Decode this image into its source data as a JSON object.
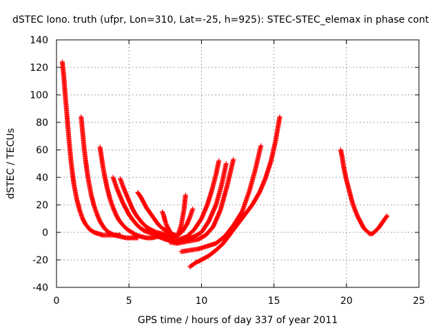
{
  "chart_data": {
    "type": "scatter",
    "title": "dSTEC Iono. truth (ufpr, Lon=310, Lat=-25, h=925): STEC-STEC_elemax in phase cont",
    "xlabel": "GPS time / hours of day 337 of year 2011",
    "ylabel": "dSTEC  / TECUs",
    "xlim": [
      0,
      25
    ],
    "ylim": [
      -40,
      140
    ],
    "xticks": [
      0,
      5,
      10,
      15,
      20,
      25
    ],
    "yticks": [
      -40,
      -20,
      0,
      20,
      40,
      60,
      80,
      100,
      120,
      140
    ],
    "grid": true,
    "marker": "+",
    "color": "#ff0000",
    "series": [
      {
        "x": [
          0.4,
          0.5,
          0.6,
          0.7,
          0.8,
          0.9,
          1.0,
          1.1,
          1.2,
          1.4,
          1.6,
          1.8,
          2.0,
          2.3,
          2.6,
          2.9,
          3.2,
          3.5,
          3.8,
          4.1,
          4.4
        ],
        "y": [
          124,
          114,
          100,
          88,
          75,
          63,
          52,
          43,
          35,
          24,
          16,
          10,
          6,
          2,
          0,
          -1,
          -2,
          -2,
          -2,
          -2,
          -2
        ]
      },
      {
        "x": [
          1.7,
          1.8,
          1.9,
          2.0,
          2.1,
          2.2,
          2.4,
          2.6,
          2.8,
          3.0,
          3.3,
          3.6,
          4.0,
          4.4,
          4.8,
          5.2,
          5.6
        ],
        "y": [
          84,
          73,
          62,
          53,
          45,
          38,
          27,
          19,
          13,
          8,
          3,
          0,
          -2,
          -3,
          -4,
          -4,
          -4
        ]
      },
      {
        "x": [
          3.0,
          3.1,
          3.2,
          3.3,
          3.4,
          3.5,
          3.7,
          3.9,
          4.1,
          4.3,
          4.6,
          4.9,
          5.2,
          5.5,
          5.8,
          6.2,
          6.6,
          7.0
        ],
        "y": [
          62,
          55,
          48,
          42,
          37,
          32,
          24,
          18,
          13,
          9,
          5,
          2,
          0,
          -2,
          -3,
          -4,
          -4,
          -3
        ]
      },
      {
        "x": [
          3.9,
          4.0,
          4.2,
          4.4,
          4.6,
          4.8,
          5.0,
          5.2,
          5.5,
          5.8,
          6.1,
          6.4,
          6.8,
          7.2,
          7.6
        ],
        "y": [
          40,
          37,
          31,
          26,
          21,
          17,
          13,
          10,
          6,
          3,
          1,
          0,
          -2,
          -3,
          -3
        ]
      },
      {
        "x": [
          4.4,
          4.6,
          4.8,
          5.0,
          5.2,
          5.4,
          5.6,
          5.9,
          6.2,
          6.5,
          6.9,
          7.3,
          7.7,
          8.0
        ],
        "y": [
          39,
          33,
          28,
          23,
          18,
          14,
          11,
          7,
          4,
          2,
          0,
          -1,
          -2,
          -2
        ]
      },
      {
        "x": [
          5.6,
          5.8,
          6.0,
          6.2,
          6.4,
          6.6,
          6.8,
          7.0,
          7.3,
          7.6,
          7.9,
          8.2
        ],
        "y": [
          29,
          26,
          22,
          18,
          15,
          12,
          9,
          6,
          3,
          1,
          -1,
          -2
        ]
      },
      {
        "x": [
          7.3,
          7.4,
          7.5,
          7.6,
          7.8,
          8.0,
          8.2,
          8.4,
          8.6,
          8.8,
          8.9
        ],
        "y": [
          15,
          12,
          8,
          5,
          1,
          -2,
          -3,
          -1,
          5,
          17,
          27
        ]
      },
      {
        "x": [
          7.5,
          7.8,
          8.1,
          8.4,
          8.7,
          9.0,
          9.2,
          9.4
        ],
        "y": [
          -4,
          -4,
          -3,
          -2,
          1,
          6,
          11,
          17
        ]
      },
      {
        "x": [
          7.0,
          7.5,
          8.0,
          8.5,
          9.0,
          9.5,
          10.0,
          10.4,
          10.7,
          11.0,
          11.2
        ],
        "y": [
          -3,
          -5,
          -6,
          -5,
          -3,
          2,
          10,
          20,
          30,
          42,
          52
        ]
      },
      {
        "x": [
          7.5,
          8.0,
          8.5,
          9.0,
          9.5,
          10.0,
          10.5,
          11.0,
          11.4,
          11.7
        ],
        "y": [
          -5,
          -6,
          -6,
          -5,
          -3,
          0,
          8,
          20,
          35,
          50
        ]
      },
      {
        "x": [
          7.8,
          8.3,
          8.8,
          9.3,
          9.8,
          10.3,
          10.8,
          11.3,
          11.8,
          12.2
        ],
        "y": [
          -7,
          -8,
          -7,
          -6,
          -5,
          -2,
          4,
          16,
          35,
          53
        ]
      },
      {
        "x": [
          8.6,
          9.2,
          9.8,
          10.4,
          11.0,
          11.6,
          12.2,
          12.8,
          13.3,
          13.7,
          14.1
        ],
        "y": [
          -14,
          -13,
          -12,
          -10,
          -8,
          -3,
          5,
          15,
          30,
          45,
          63
        ]
      },
      {
        "x": [
          9.2,
          9.6,
          10.0,
          10.5,
          11.0,
          11.5,
          12.0,
          12.5,
          13.0,
          13.5,
          14.0,
          14.4,
          14.8,
          15.1,
          15.4
        ],
        "y": [
          -25,
          -22,
          -20,
          -17,
          -13,
          -8,
          -1,
          6,
          13,
          20,
          29,
          39,
          52,
          66,
          84
        ]
      },
      {
        "x": [
          19.6,
          19.7,
          19.8,
          19.9,
          20.0,
          20.2,
          20.4,
          20.6,
          20.8,
          21.0,
          21.2,
          21.4,
          21.6,
          21.8,
          22.0,
          22.2,
          22.4,
          22.6,
          22.8
        ],
        "y": [
          60,
          55,
          48,
          43,
          38,
          30,
          22,
          16,
          11,
          7,
          3,
          1,
          -1,
          -1,
          1,
          3,
          6,
          9,
          12
        ]
      }
    ]
  }
}
